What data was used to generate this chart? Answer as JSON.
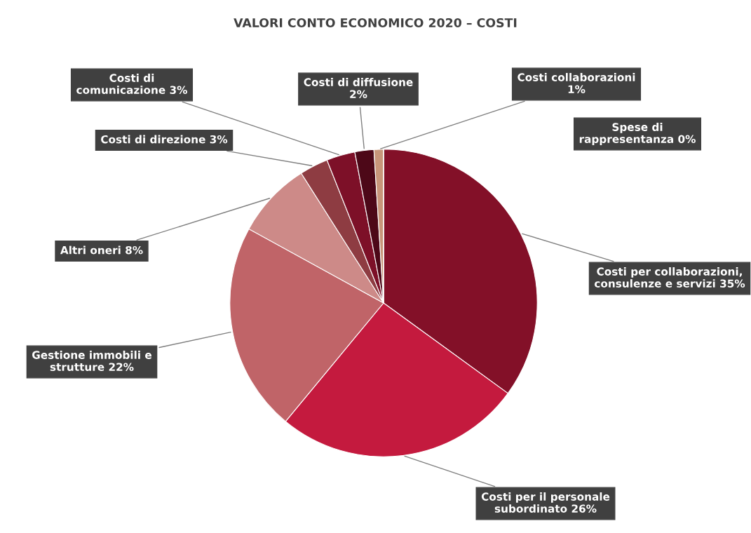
{
  "chart_data": {
    "type": "pie",
    "title": "VALORI CONTO ECONOMICO 2020 – COSTI",
    "categories": [
      "Costi per collaborazioni, consulenze e servizi 35%",
      "Costi per il personale subordinato 26%",
      "Gestione immobili e strutture 22%",
      "Altri oneri 8%",
      "Costi di direzione 3%",
      "Costi di comunicazione 3%",
      "Costi di diffusione 2%",
      "Costi collaborazioni 1%",
      "Spese di rappresentanza 0%"
    ],
    "values": [
      35,
      26,
      22,
      8,
      3,
      3,
      2,
      1,
      0
    ],
    "colors": [
      "#831028",
      "#c41a3e",
      "#c06468",
      "#cd8a88",
      "#8e3c42",
      "#7d1028",
      "#4d0818",
      "#c8967a",
      "#a05050"
    ]
  }
}
